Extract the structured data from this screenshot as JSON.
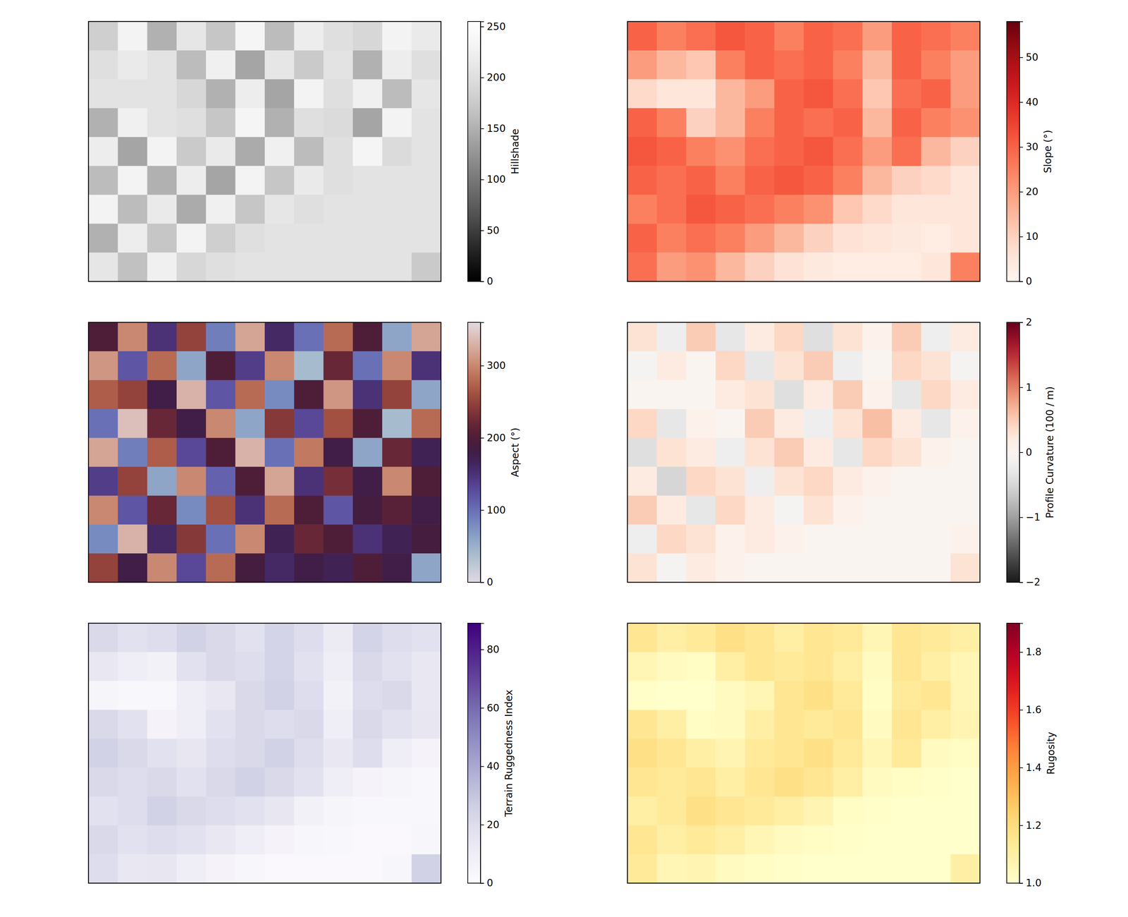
{
  "chart_data": [
    {
      "type": "heatmap",
      "colorbar_label": "Hillshade",
      "color": "greys",
      "tick_labels": false,
      "zlim": [
        0,
        255
      ],
      "zticks": [
        0,
        50,
        100,
        150,
        200,
        250
      ],
      "cells": [
        [
          180,
          230,
          150,
          210,
          170,
          235,
          160,
          220,
          200,
          190,
          230,
          215
        ],
        [
          200,
          215,
          205,
          160,
          225,
          140,
          210,
          175,
          205,
          150,
          220,
          200
        ],
        [
          205,
          205,
          205,
          190,
          150,
          220,
          140,
          230,
          200,
          225,
          160,
          210
        ],
        [
          150,
          225,
          205,
          200,
          170,
          235,
          150,
          200,
          195,
          140,
          230,
          205
        ],
        [
          220,
          140,
          230,
          175,
          215,
          145,
          225,
          160,
          200,
          235,
          195,
          205
        ],
        [
          160,
          230,
          150,
          220,
          140,
          230,
          170,
          215,
          200,
          205,
          205,
          205
        ],
        [
          230,
          160,
          215,
          145,
          225,
          170,
          210,
          200,
          205,
          205,
          205,
          205
        ],
        [
          150,
          220,
          170,
          230,
          180,
          200,
          205,
          205,
          205,
          205,
          205,
          205
        ],
        [
          210,
          165,
          225,
          190,
          200,
          205,
          205,
          205,
          205,
          205,
          205,
          175
        ]
      ]
    },
    {
      "type": "heatmap",
      "colorbar_label": "Slope (°)",
      "color": "reds",
      "tick_labels": false,
      "zlim": [
        0,
        58
      ],
      "zticks": [
        0,
        10,
        20,
        30,
        40,
        50
      ],
      "cells": [
        [
          30,
          25,
          28,
          32,
          30,
          25,
          30,
          28,
          20,
          30,
          28,
          25
        ],
        [
          20,
          15,
          12,
          25,
          30,
          28,
          30,
          25,
          15,
          30,
          25,
          20
        ],
        [
          8,
          5,
          5,
          15,
          20,
          30,
          32,
          28,
          12,
          28,
          30,
          20
        ],
        [
          30,
          25,
          10,
          15,
          25,
          30,
          28,
          30,
          15,
          30,
          25,
          22
        ],
        [
          32,
          30,
          25,
          22,
          28,
          30,
          32,
          28,
          20,
          28,
          15,
          10
        ],
        [
          30,
          28,
          30,
          25,
          30,
          32,
          30,
          25,
          15,
          10,
          8,
          5
        ],
        [
          25,
          28,
          32,
          30,
          28,
          25,
          22,
          12,
          8,
          5,
          5,
          5
        ],
        [
          30,
          25,
          28,
          25,
          20,
          15,
          10,
          6,
          5,
          4,
          3,
          5
        ],
        [
          28,
          20,
          22,
          15,
          10,
          6,
          4,
          3,
          3,
          3,
          5,
          25
        ]
      ]
    },
    {
      "type": "heatmap",
      "colorbar_label": "Aspect (°)",
      "color": "twilight",
      "tick_labels": false,
      "zlim": [
        0,
        360
      ],
      "zticks": [
        0,
        100,
        200,
        300
      ],
      "cells": [
        [
          200,
          300,
          150,
          250,
          90,
          320,
          160,
          100,
          280,
          200,
          60,
          320
        ],
        [
          310,
          120,
          280,
          60,
          200,
          140,
          300,
          40,
          220,
          100,
          300,
          150
        ],
        [
          270,
          250,
          180,
          330,
          120,
          280,
          80,
          200,
          310,
          150,
          250,
          60
        ],
        [
          100,
          340,
          220,
          180,
          300,
          60,
          240,
          130,
          260,
          200,
          40,
          280
        ],
        [
          320,
          90,
          270,
          130,
          200,
          330,
          100,
          290,
          180,
          60,
          220,
          170
        ],
        [
          140,
          250,
          60,
          300,
          110,
          200,
          320,
          150,
          230,
          180,
          300,
          200
        ],
        [
          300,
          120,
          220,
          80,
          260,
          150,
          280,
          200,
          120,
          190,
          210,
          180
        ],
        [
          80,
          330,
          160,
          240,
          100,
          300,
          170,
          220,
          200,
          150,
          170,
          190
        ],
        [
          250,
          180,
          300,
          130,
          280,
          190,
          160,
          180,
          170,
          200,
          180,
          60
        ]
      ]
    },
    {
      "type": "heatmap",
      "colorbar_label": "Profile Curvature (100 / m)",
      "color": "rdgy_r",
      "tick_labels": false,
      "zlim": [
        -2,
        2
      ],
      "zticks": [
        {
          "value": -2,
          "label": "−2"
        },
        {
          "value": -1,
          "label": "−1"
        },
        0,
        1,
        2
      ],
      "cells": [
        [
          0.3,
          -0.2,
          0.5,
          -0.3,
          0.2,
          0.4,
          -0.4,
          0.3,
          0.1,
          0.5,
          -0.2,
          0.2
        ],
        [
          -0.1,
          0.2,
          0,
          0.4,
          -0.3,
          0.3,
          0.5,
          -0.2,
          0,
          0.4,
          0.3,
          -0.1
        ],
        [
          0,
          0,
          0,
          0.2,
          0.3,
          -0.4,
          0.2,
          0.5,
          0.1,
          -0.3,
          0.4,
          0.2
        ],
        [
          0.4,
          -0.3,
          0.1,
          0,
          0.5,
          0.2,
          -0.2,
          0.3,
          0.6,
          0.2,
          -0.3,
          0.1
        ],
        [
          -0.4,
          0.3,
          0.2,
          -0.2,
          0.3,
          0.5,
          0.2,
          -0.3,
          0.4,
          0.3,
          0.1,
          0
        ],
        [
          0.2,
          -0.5,
          0.4,
          0.3,
          -0.2,
          0.3,
          0.4,
          0.2,
          0.1,
          0,
          0,
          0
        ],
        [
          0.5,
          0.2,
          -0.3,
          0.4,
          0.2,
          -0.1,
          0.3,
          0.1,
          0,
          0,
          0,
          0
        ],
        [
          -0.2,
          0.4,
          0.3,
          0.1,
          0.2,
          0.1,
          0,
          0,
          0,
          0,
          0,
          0.1
        ],
        [
          0.3,
          -0.1,
          0.2,
          0.1,
          0,
          0,
          0,
          0,
          0,
          0,
          0,
          0.3
        ]
      ]
    },
    {
      "type": "heatmap",
      "colorbar_label": "Terrain Ruggedness Index",
      "color": "purples",
      "tick_labels": false,
      "zlim": [
        0,
        89
      ],
      "zticks": [
        0,
        20,
        40,
        60,
        80
      ],
      "cells": [
        [
          22,
          18,
          20,
          25,
          22,
          18,
          24,
          20,
          12,
          24,
          20,
          18
        ],
        [
          14,
          10,
          8,
          18,
          22,
          20,
          24,
          18,
          10,
          22,
          18,
          14
        ],
        [
          5,
          3,
          3,
          10,
          14,
          22,
          25,
          20,
          8,
          20,
          22,
          14
        ],
        [
          22,
          18,
          6,
          10,
          18,
          22,
          20,
          22,
          10,
          22,
          18,
          15
        ],
        [
          25,
          22,
          18,
          15,
          20,
          22,
          25,
          20,
          14,
          20,
          10,
          6
        ],
        [
          22,
          20,
          22,
          18,
          22,
          25,
          22,
          18,
          10,
          6,
          5,
          3
        ],
        [
          18,
          20,
          25,
          22,
          20,
          18,
          15,
          8,
          5,
          3,
          3,
          3
        ],
        [
          22,
          18,
          20,
          18,
          14,
          10,
          6,
          4,
          3,
          2,
          2,
          4
        ],
        [
          20,
          14,
          15,
          10,
          6,
          4,
          2,
          2,
          2,
          2,
          4,
          25
        ]
      ]
    },
    {
      "type": "heatmap",
      "colorbar_label": "Rugosity",
      "color": "ylorrd",
      "tick_labels": false,
      "zlim": [
        1,
        1.9
      ],
      "zticks": [
        {
          "value": 1,
          "label": "1.0"
        },
        1.2,
        1.4,
        1.6,
        1.8
      ],
      "cells": [
        [
          1.15,
          1.1,
          1.13,
          1.18,
          1.15,
          1.1,
          1.15,
          1.13,
          1.06,
          1.15,
          1.13,
          1.1
        ],
        [
          1.06,
          1.03,
          1.02,
          1.1,
          1.15,
          1.13,
          1.15,
          1.1,
          1.03,
          1.15,
          1.1,
          1.06
        ],
        [
          1.01,
          1,
          1,
          1.03,
          1.06,
          1.15,
          1.18,
          1.13,
          1.02,
          1.13,
          1.15,
          1.06
        ],
        [
          1.15,
          1.1,
          1.02,
          1.03,
          1.1,
          1.15,
          1.13,
          1.15,
          1.03,
          1.15,
          1.1,
          1.07
        ],
        [
          1.18,
          1.15,
          1.1,
          1.07,
          1.13,
          1.15,
          1.18,
          1.13,
          1.06,
          1.13,
          1.03,
          1.02
        ],
        [
          1.15,
          1.13,
          1.15,
          1.1,
          1.15,
          1.18,
          1.15,
          1.1,
          1.03,
          1.02,
          1.01,
          1
        ],
        [
          1.1,
          1.13,
          1.18,
          1.15,
          1.13,
          1.1,
          1.07,
          1.02,
          1.01,
          1,
          1,
          1
        ],
        [
          1.15,
          1.1,
          1.13,
          1.1,
          1.06,
          1.03,
          1.02,
          1.01,
          1,
          1,
          1,
          1
        ],
        [
          1.13,
          1.06,
          1.07,
          1.03,
          1.02,
          1.01,
          1,
          1,
          1,
          1,
          1,
          1.1
        ]
      ]
    }
  ]
}
